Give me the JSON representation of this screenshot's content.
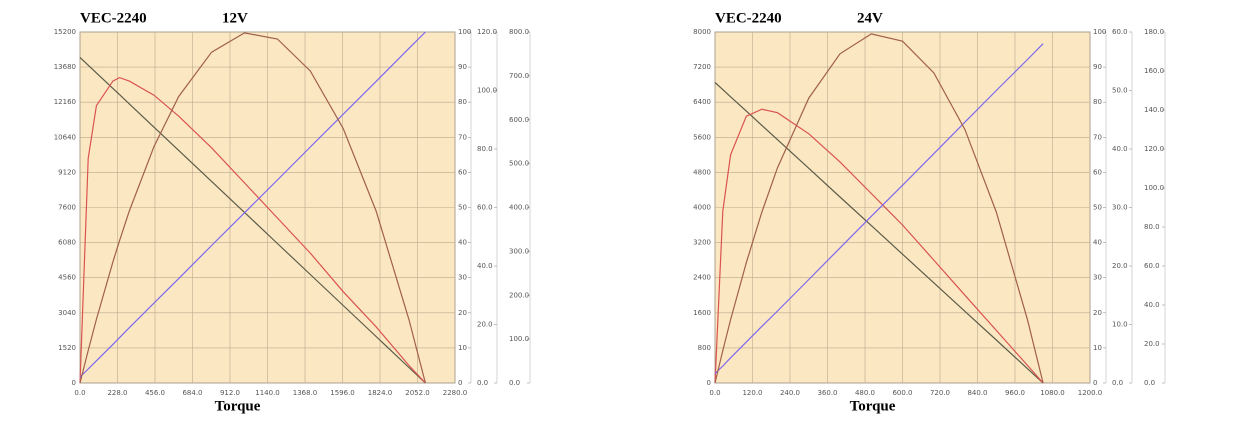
{
  "chart_data": [
    {
      "type": "line",
      "title": "VEC-2240",
      "subtitle": "12V",
      "x_label": "Torque",
      "x": [
        0,
        50,
        100,
        200,
        240,
        300,
        450,
        600,
        800,
        1000,
        1200,
        1400,
        1600,
        1800,
        2000,
        2100
      ],
      "series": [
        {
          "color": "#5c5c48",
          "axis": "y",
          "values": [
            14100,
            13764,
            13429,
            12757,
            12489,
            12086,
            11079,
            10071,
            8729,
            7386,
            6043,
            4700,
            3357,
            2014,
            671,
            0
          ]
        },
        {
          "color": "#d9534f",
          "axis": "y2",
          "values": [
            0,
            64,
            79,
            86,
            87,
            86,
            82,
            76,
            67,
            57,
            47,
            37,
            26,
            16,
            5,
            0
          ]
        },
        {
          "color": "#7b68ee",
          "axis": "y3",
          "values": [
            2,
            4.8,
            7.6,
            13.2,
            15.5,
            18.9,
            27.3,
            35.7,
            47,
            58.2,
            69.4,
            80.7,
            91.9,
            103.1,
            114.4,
            120
          ]
        },
        {
          "color": "#a0604a",
          "axis": "y4",
          "values": [
            0,
            74,
            145,
            276,
            324,
            392,
            539,
            653,
            754,
            798,
            784,
            711,
            580,
            392,
            145,
            0
          ]
        }
      ],
      "xlim": [
        0,
        2280
      ],
      "xticks": [
        {
          "value": 0,
          "label": "0.0"
        },
        {
          "value": 228,
          "label": "228.0"
        },
        {
          "value": 456,
          "label": "456.0"
        },
        {
          "value": 684,
          "label": "684.0"
        },
        {
          "value": 912,
          "label": "912.0"
        },
        {
          "value": 1140,
          "label": "1140.0"
        },
        {
          "value": 1368,
          "label": "1368.0"
        },
        {
          "value": 1596,
          "label": "1596.0"
        },
        {
          "value": 1824,
          "label": "1824.0"
        },
        {
          "value": 2052,
          "label": "2052.0"
        },
        {
          "value": 2280,
          "label": "2280.0"
        }
      ],
      "ylim": [
        0,
        15200
      ],
      "yticks": [
        0,
        1520,
        3040,
        4560,
        6080,
        7600,
        9120,
        10640,
        12160,
        13680,
        15200
      ],
      "y2lim": [
        0,
        100
      ],
      "y2ticks": [
        0,
        10,
        20,
        30,
        40,
        50,
        60,
        70,
        80,
        90,
        100
      ],
      "y3lim": [
        0,
        120
      ],
      "y3ticks": [
        {
          "value": 0,
          "label": "0.0"
        },
        {
          "value": 20,
          "label": "20.0"
        },
        {
          "value": 40,
          "label": "40.0"
        },
        {
          "value": 60,
          "label": "60.0"
        },
        {
          "value": 80,
          "label": "80.0"
        },
        {
          "value": 100,
          "label": "100.0"
        },
        {
          "value": 120,
          "label": "120.0"
        }
      ],
      "y4lim": [
        0,
        800
      ],
      "y4ticks": [
        {
          "value": 0,
          "label": "0.0"
        },
        {
          "value": 100,
          "label": "100.0"
        },
        {
          "value": 200,
          "label": "200.0"
        },
        {
          "value": 300,
          "label": "300.0"
        },
        {
          "value": 400,
          "label": "400.0"
        },
        {
          "value": 500,
          "label": "500.0"
        },
        {
          "value": 600,
          "label": "600.0"
        },
        {
          "value": 700,
          "label": "700.0"
        },
        {
          "value": 800,
          "label": "800.0"
        }
      ],
      "grid": true
    },
    {
      "type": "line",
      "title": "VEC-2240",
      "subtitle": "24V",
      "x_label": "Torque",
      "x": [
        0,
        25,
        50,
        100,
        150,
        200,
        300,
        400,
        500,
        600,
        700,
        800,
        900,
        1000,
        1050
      ],
      "series": [
        {
          "color": "#5c5c48",
          "axis": "y",
          "values": [
            6850,
            6687,
            6524,
            6198,
            5871,
            5545,
            4893,
            4240,
            3588,
            2936,
            2283,
            1631,
            979,
            326,
            0
          ]
        },
        {
          "color": "#d9534f",
          "axis": "y2",
          "values": [
            0,
            49,
            65,
            76,
            78,
            77,
            71,
            63,
            54,
            45,
            35,
            25,
            15,
            5,
            0
          ]
        },
        {
          "color": "#7b68ee",
          "axis": "y3",
          "values": [
            1.6,
            2.9,
            4.3,
            7.0,
            9.7,
            12.3,
            17.7,
            23.1,
            28.5,
            33.8,
            39.2,
            44.6,
            50.0,
            55.3,
            58.0
          ]
        },
        {
          "color": "#a0604a",
          "axis": "y4",
          "values": [
            0,
            16.6,
            32.5,
            61.7,
            87.7,
            110.4,
            146.1,
            168.8,
            179,
            175.3,
            159.1,
            129.9,
            87.7,
            32.4,
            0
          ]
        }
      ],
      "xlim": [
        0,
        1200
      ],
      "xticks": [
        {
          "value": 0,
          "label": "0.0"
        },
        {
          "value": 120,
          "label": "120.0"
        },
        {
          "value": 240,
          "label": "240.0"
        },
        {
          "value": 360,
          "label": "360.0"
        },
        {
          "value": 480,
          "label": "480.0"
        },
        {
          "value": 600,
          "label": "600.0"
        },
        {
          "value": 720,
          "label": "720.0"
        },
        {
          "value": 840,
          "label": "840.0"
        },
        {
          "value": 960,
          "label": "960.0"
        },
        {
          "value": 1080,
          "label": "1080.0"
        },
        {
          "value": 1200,
          "label": "1200.0"
        }
      ],
      "ylim": [
        0,
        8000
      ],
      "yticks": [
        0,
        800,
        1600,
        2400,
        3200,
        4000,
        4800,
        5600,
        6400,
        7200,
        8000
      ],
      "y2lim": [
        0,
        100
      ],
      "y2ticks": [
        0,
        10,
        20,
        30,
        40,
        50,
        60,
        70,
        80,
        90,
        100
      ],
      "y3lim": [
        0,
        60
      ],
      "y3ticks": [
        {
          "value": 0,
          "label": "0.0"
        },
        {
          "value": 10,
          "label": "10.0"
        },
        {
          "value": 20,
          "label": "20.0"
        },
        {
          "value": 30,
          "label": "30.0"
        },
        {
          "value": 40,
          "label": "40.0"
        },
        {
          "value": 50,
          "label": "50.0"
        },
        {
          "value": 60,
          "label": "60.0"
        }
      ],
      "y4lim": [
        0,
        180
      ],
      "y4ticks": [
        {
          "value": 0,
          "label": "0.0"
        },
        {
          "value": 20,
          "label": "20.0"
        },
        {
          "value": 40,
          "label": "40.0"
        },
        {
          "value": 60,
          "label": "60.0"
        },
        {
          "value": 80,
          "label": "80.0"
        },
        {
          "value": 100,
          "label": "100.0"
        },
        {
          "value": 120,
          "label": "120.0"
        },
        {
          "value": 140,
          "label": "140.0"
        },
        {
          "value": 160,
          "label": "160.0"
        },
        {
          "value": 180,
          "label": "180.0"
        }
      ],
      "grid": true
    }
  ]
}
